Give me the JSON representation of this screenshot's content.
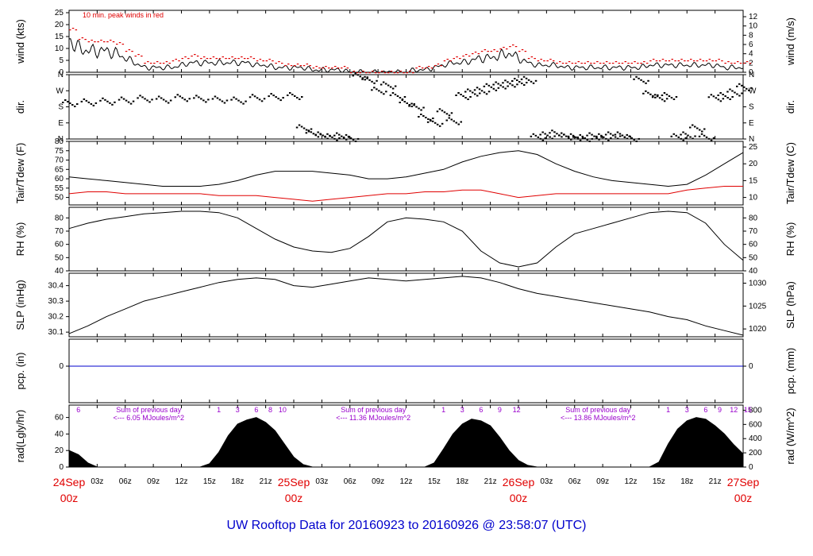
{
  "title": "UW Rooftop Data for 20160923  to  20160926 @ 23:58:07  (UTC)",
  "colors": {
    "red": "#e00000",
    "blue": "#0000cc",
    "purple": "#9900cc",
    "black": "#000000"
  },
  "x_axis": {
    "day_labels": [
      {
        "hour": 0,
        "date": "24Sep",
        "time": "00z"
      },
      {
        "hour": 24,
        "date": "25Sep",
        "time": "00z"
      },
      {
        "hour": 48,
        "date": "26Sep",
        "time": "00z"
      },
      {
        "hour": 72,
        "date": "27Sep",
        "time": "00z"
      }
    ],
    "ticks": [
      {
        "hour": 3,
        "label": "03z"
      },
      {
        "hour": 6,
        "label": "06z"
      },
      {
        "hour": 9,
        "label": "09z"
      },
      {
        "hour": 12,
        "label": "12z"
      },
      {
        "hour": 15,
        "label": "15z"
      },
      {
        "hour": 18,
        "label": "18z"
      },
      {
        "hour": 21,
        "label": "21z"
      },
      {
        "hour": 27,
        "label": "03z"
      },
      {
        "hour": 30,
        "label": "06z"
      },
      {
        "hour": 33,
        "label": "09z"
      },
      {
        "hour": 36,
        "label": "12z"
      },
      {
        "hour": 39,
        "label": "15z"
      },
      {
        "hour": 42,
        "label": "18z"
      },
      {
        "hour": 45,
        "label": "21z"
      },
      {
        "hour": 51,
        "label": "03z"
      },
      {
        "hour": 54,
        "label": "06z"
      },
      {
        "hour": 57,
        "label": "09z"
      },
      {
        "hour": 60,
        "label": "12z"
      },
      {
        "hour": 63,
        "label": "15z"
      },
      {
        "hour": 66,
        "label": "18z"
      },
      {
        "hour": 69,
        "label": "21z"
      }
    ]
  },
  "chart_data": [
    {
      "id": "wind",
      "type": "line",
      "ylabel_left": "wind (kts)",
      "ylabel_right": "wind (m/s)",
      "ylim": [
        0,
        26
      ],
      "left_ticks": [
        0,
        5,
        10,
        15,
        20,
        25
      ],
      "right_ticks": [
        0,
        2,
        4,
        6,
        8,
        10,
        12
      ],
      "annotation": "10 min. peak winds in red",
      "series": [
        {
          "name": "wind speed",
          "color": "#000000",
          "x": [
            0,
            1,
            2,
            3,
            4,
            5,
            6,
            7,
            8,
            9,
            10,
            11,
            12,
            13,
            14,
            15,
            16,
            17,
            18,
            19,
            20,
            21,
            22,
            23,
            24,
            25,
            26,
            27,
            28,
            29,
            30,
            31,
            32,
            33,
            34,
            35,
            36,
            37,
            38,
            39,
            40,
            41,
            42,
            43,
            44,
            45,
            46,
            47,
            48,
            49,
            50,
            51,
            52,
            53,
            54,
            55,
            56,
            57,
            58,
            59,
            60,
            61,
            62,
            63,
            64,
            65,
            66,
            67,
            68,
            69,
            70,
            71,
            72
          ],
          "y": [
            14,
            10,
            9,
            9,
            9,
            8,
            6,
            4,
            2,
            2,
            2,
            2,
            3,
            4,
            4,
            4,
            4,
            4,
            4,
            4,
            3,
            3,
            2,
            2,
            2,
            2,
            1,
            1,
            1,
            1,
            0,
            0,
            0,
            0,
            0,
            0,
            0,
            1,
            1,
            2,
            3,
            4,
            4,
            5,
            6,
            6,
            7,
            8,
            6,
            4,
            3,
            3,
            3,
            2,
            2,
            2,
            2,
            2,
            2,
            2,
            2,
            2,
            3,
            3,
            3,
            3,
            3,
            3,
            3,
            3,
            2,
            2,
            2
          ]
        },
        {
          "name": "peak wind",
          "color": "#e00000",
          "x": [
            0,
            1,
            2,
            3,
            4,
            5,
            6,
            7,
            8,
            9,
            10,
            11,
            12,
            13,
            14,
            15,
            16,
            17,
            18,
            19,
            20,
            21,
            22,
            23,
            24,
            25,
            26,
            27,
            28,
            29,
            30,
            31,
            32,
            33,
            34,
            35,
            36,
            37,
            38,
            39,
            40,
            41,
            42,
            43,
            44,
            45,
            46,
            47,
            48,
            49,
            50,
            51,
            52,
            53,
            54,
            55,
            56,
            57,
            58,
            59,
            60,
            61,
            62,
            63,
            64,
            65,
            66,
            67,
            68,
            69,
            70,
            71,
            72
          ],
          "y": [
            18,
            14,
            13,
            13,
            13,
            12,
            9,
            7,
            4,
            4,
            4,
            5,
            6,
            7,
            6,
            6,
            6,
            6,
            6,
            6,
            5,
            5,
            4,
            3,
            3,
            3,
            2,
            2,
            2,
            2,
            0,
            0,
            0,
            0,
            0,
            0,
            0,
            2,
            2,
            3,
            5,
            6,
            7,
            8,
            9,
            9,
            10,
            11,
            9,
            6,
            5,
            5,
            4,
            4,
            4,
            4,
            4,
            4,
            4,
            4,
            4,
            4,
            5,
            5,
            5,
            5,
            5,
            5,
            5,
            5,
            4,
            4,
            4
          ]
        }
      ]
    },
    {
      "id": "dir",
      "type": "scatter",
      "ylabel_left": "dir.",
      "ylabel_right": "dir.",
      "categories": [
        "N",
        "E",
        "S",
        "W",
        "N"
      ],
      "ylim": [
        0,
        360
      ],
      "series": [
        {
          "name": "wind direction",
          "color": "#000000",
          "x": [
            0,
            2,
            4,
            6,
            8,
            10,
            12,
            14,
            16,
            18,
            20,
            22,
            24,
            25,
            26,
            27,
            28,
            29,
            30,
            31,
            32,
            33,
            34,
            35,
            36,
            37,
            38,
            39,
            40,
            41,
            42,
            43,
            44,
            45,
            46,
            47,
            48,
            49,
            50,
            51,
            52,
            53,
            54,
            55,
            56,
            57,
            58,
            59,
            60,
            61,
            62,
            63,
            64,
            65,
            66,
            67,
            68,
            69,
            70,
            71,
            72
          ],
          "y": [
            200,
            205,
            210,
            215,
            225,
            220,
            230,
            225,
            220,
            215,
            230,
            235,
            240,
            60,
            30,
            20,
            10,
            15,
            5,
            350,
            330,
            270,
            300,
            240,
            200,
            180,
            120,
            90,
            150,
            100,
            240,
            260,
            270,
            290,
            300,
            310,
            320,
            330,
            10,
            20,
            30,
            15,
            10,
            5,
            15,
            10,
            20,
            20,
            5,
            330,
            250,
            230,
            240,
            10,
            20,
            60,
            10,
            230,
            240,
            260,
            290
          ]
        }
      ]
    },
    {
      "id": "temp",
      "type": "line",
      "ylabel_left": "Tair/Tdew (F)",
      "ylabel_right": "Tair/Tdew (C)",
      "ylim": [
        46,
        80
      ],
      "left_ticks": [
        50,
        55,
        60,
        65,
        70,
        75,
        80
      ],
      "right_ticks": [
        10,
        15,
        20,
        25
      ],
      "series": [
        {
          "name": "Tair",
          "color": "#000000",
          "x": [
            0,
            2,
            4,
            6,
            8,
            10,
            12,
            14,
            16,
            18,
            20,
            22,
            24,
            26,
            28,
            30,
            32,
            34,
            36,
            38,
            40,
            42,
            44,
            46,
            48,
            50,
            52,
            54,
            56,
            58,
            60,
            62,
            64,
            66,
            68,
            70,
            72
          ],
          "y": [
            61,
            60,
            59,
            58,
            57,
            56,
            56,
            56,
            57,
            59,
            62,
            64,
            64,
            64,
            63,
            62,
            60,
            60,
            61,
            63,
            65,
            69,
            72,
            74,
            75,
            73,
            68,
            64,
            61,
            59,
            58,
            57,
            56,
            57,
            62,
            68,
            74
          ]
        },
        {
          "name": "Tdew",
          "color": "#e00000",
          "x": [
            0,
            2,
            4,
            6,
            8,
            10,
            12,
            14,
            16,
            18,
            20,
            22,
            24,
            26,
            28,
            30,
            32,
            34,
            36,
            38,
            40,
            42,
            44,
            46,
            48,
            50,
            52,
            54,
            56,
            58,
            60,
            62,
            64,
            66,
            68,
            70,
            72
          ],
          "y": [
            52,
            53,
            53,
            52,
            52,
            52,
            52,
            52,
            51,
            51,
            51,
            50,
            49,
            48,
            49,
            50,
            51,
            52,
            52,
            53,
            53,
            54,
            54,
            52,
            50,
            51,
            52,
            52,
            52,
            52,
            52,
            52,
            52,
            54,
            55,
            56,
            56
          ]
        }
      ]
    },
    {
      "id": "rh",
      "type": "line",
      "ylabel_left": "RH (%)",
      "ylabel_right": "RH (%)",
      "ylim": [
        40,
        88
      ],
      "left_ticks": [
        40,
        50,
        60,
        70,
        80
      ],
      "right_ticks": [
        40,
        50,
        60,
        70,
        80
      ],
      "series": [
        {
          "name": "RH",
          "color": "#000000",
          "x": [
            0,
            2,
            4,
            6,
            8,
            10,
            12,
            14,
            16,
            18,
            20,
            22,
            24,
            26,
            28,
            30,
            32,
            34,
            36,
            38,
            40,
            42,
            44,
            46,
            48,
            50,
            52,
            54,
            56,
            58,
            60,
            62,
            64,
            66,
            68,
            70,
            72
          ],
          "y": [
            72,
            76,
            79,
            81,
            83,
            84,
            85,
            85,
            84,
            80,
            72,
            64,
            58,
            55,
            54,
            57,
            66,
            77,
            80,
            79,
            77,
            70,
            55,
            46,
            43,
            46,
            58,
            68,
            72,
            76,
            80,
            84,
            85,
            84,
            76,
            60,
            48
          ]
        }
      ]
    },
    {
      "id": "slp",
      "type": "line",
      "ylabel_left": "SLP (inHg)",
      "ylabel_right": "SLP (hPa)",
      "ylim": [
        30.07,
        30.48
      ],
      "left_ticks": [
        30.1,
        30.2,
        30.3,
        30.4
      ],
      "right_ticks_hpa": [
        1020,
        1025,
        1030
      ],
      "series": [
        {
          "name": "SLP",
          "color": "#000000",
          "x": [
            0,
            2,
            4,
            6,
            8,
            10,
            12,
            14,
            16,
            18,
            20,
            22,
            24,
            26,
            28,
            30,
            32,
            34,
            36,
            38,
            40,
            42,
            44,
            46,
            48,
            50,
            52,
            54,
            56,
            58,
            60,
            62,
            64,
            66,
            68,
            70,
            72
          ],
          "y": [
            30.09,
            30.14,
            30.2,
            30.25,
            30.3,
            30.33,
            30.36,
            30.39,
            30.42,
            30.44,
            30.45,
            30.44,
            30.4,
            30.39,
            30.41,
            30.43,
            30.45,
            30.44,
            30.43,
            30.44,
            30.45,
            30.46,
            30.45,
            30.42,
            30.38,
            30.35,
            30.33,
            30.31,
            30.29,
            30.27,
            30.25,
            30.23,
            30.2,
            30.18,
            30.14,
            30.11,
            30.08
          ]
        }
      ]
    },
    {
      "id": "pcp",
      "type": "line",
      "ylabel_left": "pcp. (in)",
      "ylabel_right": "pcp. (mm)",
      "left_ticks": [
        0
      ],
      "right_ticks": [
        0
      ],
      "series": [
        {
          "name": "precip",
          "color": "#0000cc",
          "x": [
            0,
            72
          ],
          "y": [
            0,
            0
          ]
        }
      ]
    },
    {
      "id": "rad",
      "type": "area",
      "ylabel_left": "rad(Lgly/hr)",
      "ylabel_right": "rad (W/m^2)",
      "ylim": [
        0,
        75
      ],
      "left_ticks": [
        0,
        20,
        40,
        60
      ],
      "right_ticks_wm2": [
        0,
        200,
        400,
        600,
        800
      ],
      "day_sum_labels": [
        {
          "hour": 8.5,
          "line1": "Sum of previous day",
          "line2": "<--- 6.05 MJoules/m^2"
        },
        {
          "hour": 32.5,
          "line1": "Sum of previous day",
          "line2": "<--- 11.36 MJoules/m^2"
        },
        {
          "hour": 56.5,
          "line1": "Sum of previous day",
          "line2": "<--- 13.86 MJoules/m^2"
        }
      ],
      "hour_marks": [
        {
          "hour": 1,
          "label": "6"
        },
        {
          "hour": 16,
          "label": "1"
        },
        {
          "hour": 18,
          "label": "3"
        },
        {
          "hour": 20,
          "label": "6"
        },
        {
          "hour": 21.5,
          "label": "8"
        },
        {
          "hour": 22.8,
          "label": "10"
        },
        {
          "hour": 40,
          "label": "1"
        },
        {
          "hour": 42,
          "label": "3"
        },
        {
          "hour": 44,
          "label": "6"
        },
        {
          "hour": 46,
          "label": "9"
        },
        {
          "hour": 47.8,
          "label": "12"
        },
        {
          "hour": 64,
          "label": "1"
        },
        {
          "hour": 66,
          "label": "3"
        },
        {
          "hour": 68,
          "label": "6"
        },
        {
          "hour": 69.5,
          "label": "9"
        },
        {
          "hour": 71,
          "label": "12"
        },
        {
          "hour": 72.5,
          "label": "15"
        }
      ],
      "series": [
        {
          "name": "radiation",
          "color": "#000000",
          "x": [
            0,
            1,
            2,
            3,
            14,
            15,
            16,
            17,
            18,
            19,
            20,
            21,
            22,
            23,
            24,
            25,
            26,
            27,
            38,
            39,
            40,
            41,
            42,
            43,
            44,
            45,
            46,
            47,
            48,
            49,
            50,
            51,
            62,
            63,
            64,
            65,
            66,
            67,
            68,
            69,
            70,
            71,
            72
          ],
          "y": [
            20,
            15,
            5,
            0,
            0,
            4,
            18,
            38,
            52,
            57,
            60,
            54,
            44,
            28,
            12,
            3,
            0,
            0,
            0,
            5,
            22,
            40,
            52,
            58,
            56,
            50,
            36,
            20,
            8,
            2,
            0,
            0,
            0,
            6,
            28,
            46,
            56,
            60,
            58,
            50,
            40,
            27,
            16
          ]
        }
      ]
    }
  ]
}
